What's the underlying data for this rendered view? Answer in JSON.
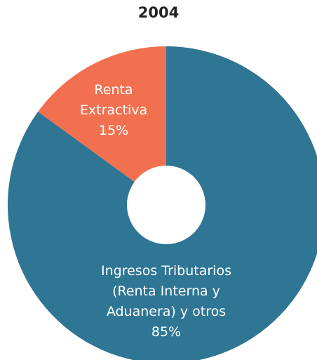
{
  "chart_data": {
    "type": "donut",
    "title": "2004",
    "categories": [
      "Ingresos Tributarios (Renta Interna y Aduanera) y otros",
      "Renta Extractiva"
    ],
    "values": [
      85,
      15
    ],
    "value_labels": [
      "85%",
      "15%"
    ],
    "colors": [
      "#2e7694",
      "#f17050"
    ]
  }
}
